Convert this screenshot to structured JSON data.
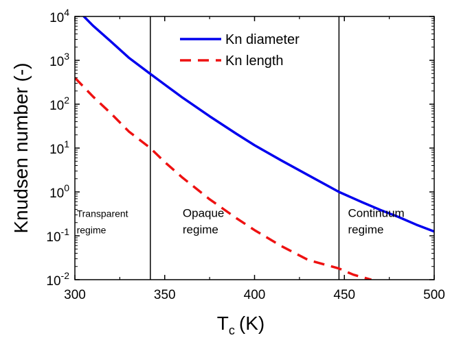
{
  "chart_data": {
    "type": "line",
    "title": "",
    "xlabel": "T",
    "xlabel_sub": "c",
    "xlabel_unit": "(K)",
    "ylabel": "Knudsen number (-)",
    "xlim": [
      300,
      500
    ],
    "ylim": [
      0.01,
      10000
    ],
    "yscale": "log",
    "x_ticks": [
      300,
      350,
      400,
      450,
      500
    ],
    "y_ticks": [
      {
        "base": "10",
        "exp": "-2",
        "value": 0.01
      },
      {
        "base": "10",
        "exp": "-1",
        "value": 0.1
      },
      {
        "base": "10",
        "exp": "0",
        "value": 1
      },
      {
        "base": "10",
        "exp": "1",
        "value": 10
      },
      {
        "base": "10",
        "exp": "2",
        "value": 100
      },
      {
        "base": "10",
        "exp": "3",
        "value": 1000
      },
      {
        "base": "10",
        "exp": "4",
        "value": 10000
      }
    ],
    "series": [
      {
        "name": "Kn diameter",
        "color": "#0000ee",
        "style": "solid",
        "x": [
          300,
          305,
          310,
          320,
          330,
          342,
          350,
          360,
          375,
          390,
          400,
          415,
          430,
          447,
          460,
          470,
          480,
          490,
          500
        ],
        "y": [
          18000,
          10000,
          6200,
          2700,
          1150,
          490,
          280,
          140,
          53,
          21,
          11.6,
          5.2,
          2.4,
          1.0,
          0.58,
          0.39,
          0.27,
          0.18,
          0.125
        ]
      },
      {
        "name": "Kn length",
        "color": "#ee1111",
        "style": "dashed",
        "x": [
          300,
          310,
          320,
          330,
          342,
          350,
          360,
          375,
          390,
          400,
          415,
          430,
          447,
          455,
          465
        ],
        "y": [
          400,
          150,
          62,
          24,
          10,
          4.8,
          2.1,
          0.68,
          0.25,
          0.135,
          0.058,
          0.028,
          0.018,
          0.013,
          0.01
        ]
      }
    ],
    "vertical_lines": [
      342,
      447
    ],
    "annotations": [
      {
        "lines": [
          "Transparent",
          "regime"
        ],
        "x": 301,
        "y_top": 0.2
      },
      {
        "lines": [
          "Opaque",
          "regime"
        ],
        "x": 360,
        "y_top": 0.2
      },
      {
        "lines": [
          "Continuum",
          "regime"
        ],
        "x": 452,
        "y_top": 0.2
      }
    ],
    "legend_position": "top-center",
    "grid": false
  }
}
